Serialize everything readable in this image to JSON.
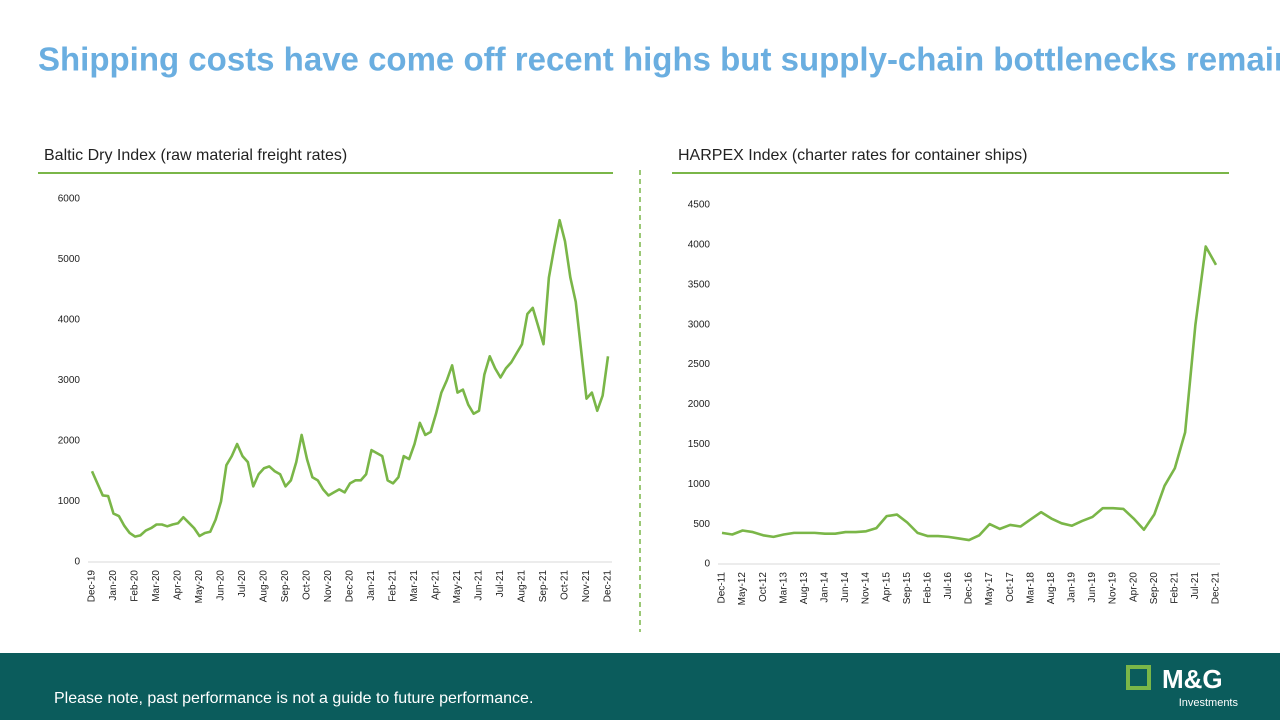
{
  "title": "Shipping costs have come off recent highs but supply-chain bottlenecks remain",
  "footer": "Please note, past performance is not a guide to future performance.",
  "logo": {
    "name": "M&G",
    "tagline": "Investments"
  },
  "chart_data": [
    {
      "type": "line",
      "title": "Baltic Dry Index (raw material freight rates)",
      "categories": [
        "Dec-19",
        null,
        null,
        null,
        "Jan-20",
        null,
        null,
        null,
        "Feb-20",
        null,
        null,
        null,
        "Mar-20",
        null,
        null,
        null,
        "Apr-20",
        null,
        null,
        null,
        "May-20",
        null,
        null,
        null,
        "Jun-20",
        null,
        null,
        null,
        "Jul-20",
        null,
        null,
        null,
        "Aug-20",
        null,
        null,
        null,
        "Sep-20",
        null,
        null,
        null,
        "Oct-20",
        null,
        null,
        null,
        "Nov-20",
        null,
        null,
        null,
        "Dec-20",
        null,
        null,
        null,
        "Jan-21",
        null,
        null,
        null,
        "Feb-21",
        null,
        null,
        null,
        "Mar-21",
        null,
        null,
        null,
        "Apr-21",
        null,
        null,
        null,
        "May-21",
        null,
        null,
        null,
        "Jun-21",
        null,
        null,
        null,
        "Jul-21",
        null,
        null,
        null,
        "Aug-21",
        null,
        null,
        null,
        "Sep-21",
        null,
        null,
        null,
        "Oct-21",
        null,
        null,
        null,
        "Nov-21",
        null,
        null,
        null,
        "Dec-21"
      ],
      "values": [
        1500,
        1300,
        1100,
        1090,
        800,
        760,
        600,
        480,
        420,
        440,
        520,
        560,
        620,
        620,
        590,
        620,
        640,
        740,
        650,
        560,
        430,
        480,
        500,
        700,
        1000,
        1600,
        1750,
        1950,
        1750,
        1650,
        1250,
        1450,
        1550,
        1580,
        1500,
        1450,
        1250,
        1350,
        1650,
        2100,
        1700,
        1400,
        1350,
        1200,
        1100,
        1150,
        1200,
        1150,
        1300,
        1350,
        1350,
        1450,
        1850,
        1800,
        1750,
        1350,
        1300,
        1400,
        1750,
        1700,
        1950,
        2300,
        2100,
        2150,
        2450,
        2800,
        3000,
        3250,
        2800,
        2850,
        2600,
        2450,
        2500,
        3100,
        3400,
        3200,
        3050,
        3200,
        3300,
        3450,
        3600,
        4100,
        4200,
        3900,
        3600,
        4700,
        5200,
        5650,
        5300,
        4700,
        4300,
        3500,
        2700,
        2800,
        2500,
        2750,
        3400
      ],
      "color": "#7ab648",
      "ylim": [
        0,
        6000
      ],
      "yticks": [
        0,
        1000,
        2000,
        3000,
        4000,
        5000,
        6000
      ],
      "grid": false
    },
    {
      "type": "line",
      "title": "HARPEX Index (charter rates for container ships)",
      "categories": [
        "Dec-11",
        null,
        "May-12",
        null,
        "Oct-12",
        null,
        "Mar-13",
        null,
        "Aug-13",
        null,
        "Jan-14",
        null,
        "Jun-14",
        null,
        "Nov-14",
        null,
        "Apr-15",
        null,
        "Sep-15",
        null,
        "Feb-16",
        null,
        "Jul-16",
        null,
        "Dec-16",
        null,
        "May-17",
        null,
        "Oct-17",
        null,
        "Mar-18",
        null,
        "Aug-18",
        null,
        "Jan-19",
        null,
        "Jun-19",
        null,
        "Nov-19",
        null,
        "Apr-20",
        null,
        "Sep-20",
        null,
        "Feb-21",
        null,
        "Jul-21",
        null,
        "Dec-21"
      ],
      "values": [
        390,
        370,
        420,
        400,
        360,
        340,
        370,
        390,
        390,
        390,
        380,
        380,
        400,
        400,
        410,
        450,
        600,
        620,
        520,
        390,
        350,
        350,
        340,
        320,
        300,
        360,
        500,
        440,
        490,
        470,
        560,
        650,
        570,
        510,
        480,
        540,
        590,
        700,
        700,
        690,
        570,
        430,
        620,
        980,
        1200,
        1650,
        3000,
        3980,
        3750
      ],
      "color": "#7ab648",
      "ylim": [
        0,
        4500
      ],
      "yticks": [
        0,
        500,
        1000,
        1500,
        2000,
        2500,
        3000,
        3500,
        4000,
        4500
      ],
      "grid": false
    }
  ]
}
